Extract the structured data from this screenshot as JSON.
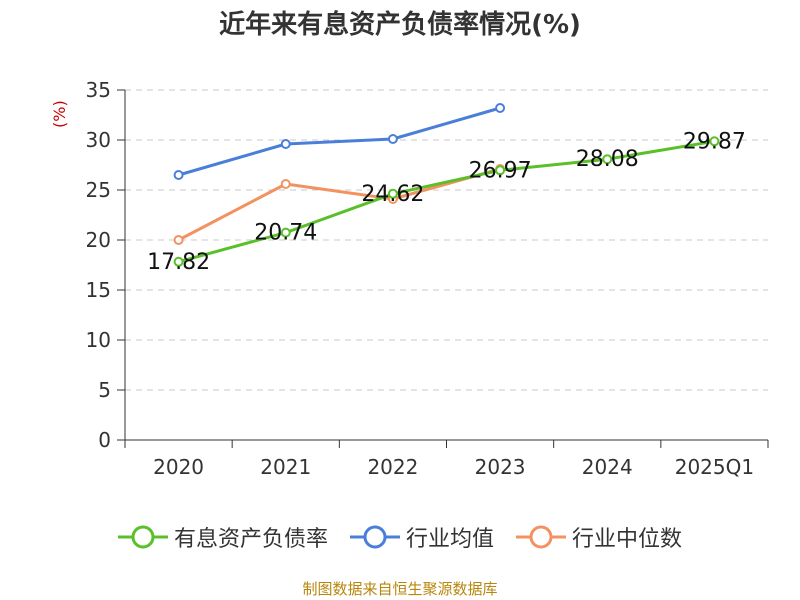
{
  "chart_data": {
    "type": "line",
    "title": "近年来有息资产负债率情况(%)",
    "ylabel": "(%)",
    "categories": [
      "2020",
      "2021",
      "2022",
      "2023",
      "2024",
      "2025Q1"
    ],
    "ylim": [
      0,
      35
    ],
    "yticks": [
      0,
      5,
      10,
      15,
      20,
      25,
      30,
      35
    ],
    "grid": true,
    "legend_position": "bottom",
    "series": [
      {
        "name": "有息资产负债率",
        "color": "#5ac02a",
        "values": [
          17.82,
          20.74,
          24.62,
          26.97,
          28.08,
          29.87
        ],
        "labels": [
          "17.82",
          "20.74",
          "24.62",
          "26.97",
          "28.08",
          "29.87"
        ]
      },
      {
        "name": "行业均值",
        "color": "#4a7fd9",
        "values": [
          26.5,
          29.6,
          30.1,
          33.2,
          null,
          null
        ]
      },
      {
        "name": "行业中位数",
        "color": "#f39260",
        "values": [
          20.0,
          25.6,
          24.1,
          27.1,
          null,
          null
        ]
      }
    ]
  },
  "footer": {
    "source": "制图数据来自恒生聚源数据库"
  }
}
